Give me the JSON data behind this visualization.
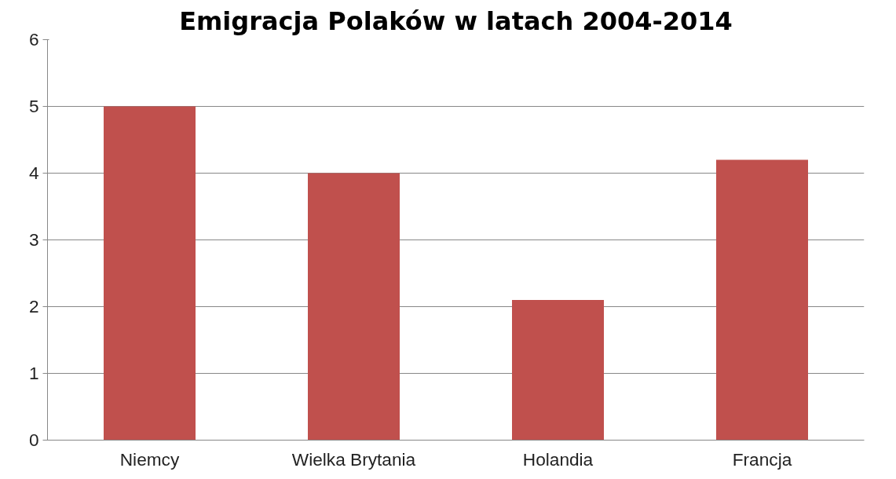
{
  "chart_data": {
    "type": "bar",
    "title": "Emigracja Polaków w latach 2004-2014",
    "categories": [
      "Niemcy",
      "Wielka Brytania",
      "Holandia",
      "Francja"
    ],
    "values": [
      5,
      4,
      2.1,
      4.2
    ],
    "color": "#c0504d",
    "ylim": [
      0,
      6
    ],
    "yticks": [
      0,
      1,
      2,
      3,
      4,
      5,
      6
    ],
    "grid": "y"
  }
}
